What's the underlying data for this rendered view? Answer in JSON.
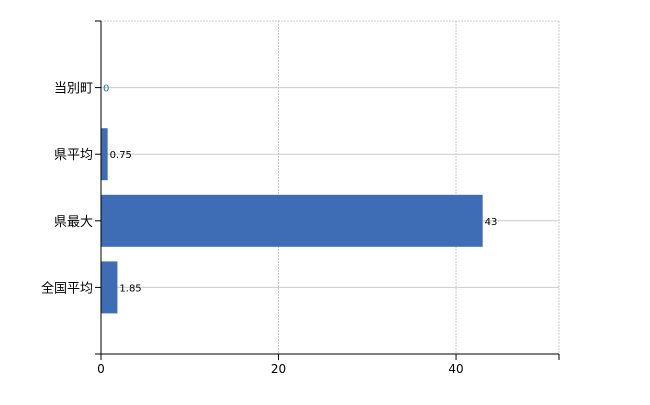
{
  "chart_data": {
    "type": "bar",
    "orientation": "horizontal",
    "categories": [
      "当別町",
      "県平均",
      "県最大",
      "全国平均"
    ],
    "values": [
      0,
      0.75,
      43,
      1.85
    ],
    "data_labels": [
      "0",
      "0.75",
      "43",
      "1.85"
    ],
    "xlim": [
      0,
      51.6
    ],
    "xticks": [
      0,
      20,
      40
    ],
    "xtick_labels": [
      "0",
      "20",
      "40"
    ],
    "grid": true,
    "bar_color": "#3f6db5",
    "title": "",
    "xlabel": "",
    "ylabel": ""
  }
}
